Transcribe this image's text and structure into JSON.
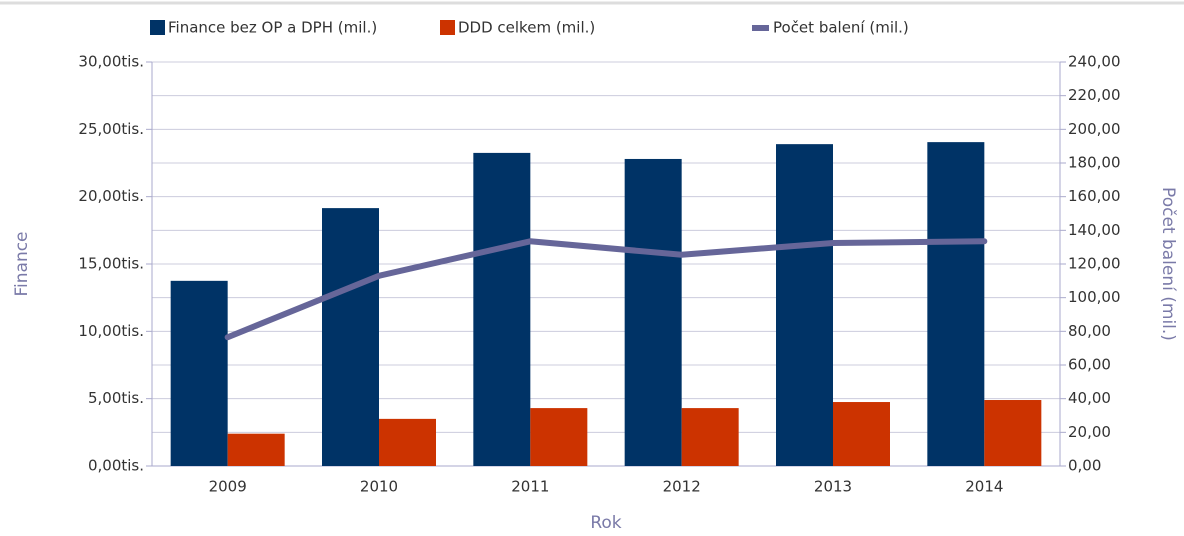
{
  "chart_data": {
    "type": "bar_line",
    "x_label": "Rok",
    "y_label": "Finance",
    "y2_label": "Počet balení (mil.)",
    "categories": [
      "2009",
      "2010",
      "2011",
      "2012",
      "2013",
      "2014"
    ],
    "series": [
      {
        "name": "Finance bez OP a DPH (mil.)",
        "color": "#003366",
        "type": "bar",
        "values": [
          13750,
          19150,
          23250,
          22800,
          23900,
          24050
        ]
      },
      {
        "name": "DDD celkem (mil.)",
        "color": "#cc3300",
        "type": "bar",
        "values": [
          2400,
          3500,
          4300,
          4300,
          4750,
          4900
        ]
      },
      {
        "name": "Počet balení (mil.)",
        "color": "#666699",
        "type": "line",
        "axis": "y2",
        "values": [
          76.5,
          113,
          133.5,
          125.5,
          132.5,
          133.5
        ]
      }
    ],
    "ylim": [
      0,
      30000
    ],
    "yticks": [
      {
        "value": 0,
        "label": "0,00tis."
      },
      {
        "value": 5000,
        "label": "5,00tis."
      },
      {
        "value": 10000,
        "label": "10,00tis."
      },
      {
        "value": 15000,
        "label": "15,00tis."
      },
      {
        "value": 20000,
        "label": "20,00tis."
      },
      {
        "value": 25000,
        "label": "25,00tis."
      },
      {
        "value": 30000,
        "label": "30,00tis."
      }
    ],
    "y2lim": [
      0,
      240
    ],
    "y2ticks": [
      {
        "value": 0,
        "label": "0,00"
      },
      {
        "value": 20,
        "label": "20,00"
      },
      {
        "value": 40,
        "label": "40,00"
      },
      {
        "value": 60,
        "label": "60,00"
      },
      {
        "value": 80,
        "label": "80,00"
      },
      {
        "value": 100,
        "label": "100,00"
      },
      {
        "value": 120,
        "label": "120,00"
      },
      {
        "value": 140,
        "label": "140,00"
      },
      {
        "value": 160,
        "label": "160,00"
      },
      {
        "value": 180,
        "label": "180,00"
      },
      {
        "value": 200,
        "label": "200,00"
      },
      {
        "value": 220,
        "label": "220,00"
      },
      {
        "value": 240,
        "label": "240,00"
      }
    ],
    "grid": true
  }
}
